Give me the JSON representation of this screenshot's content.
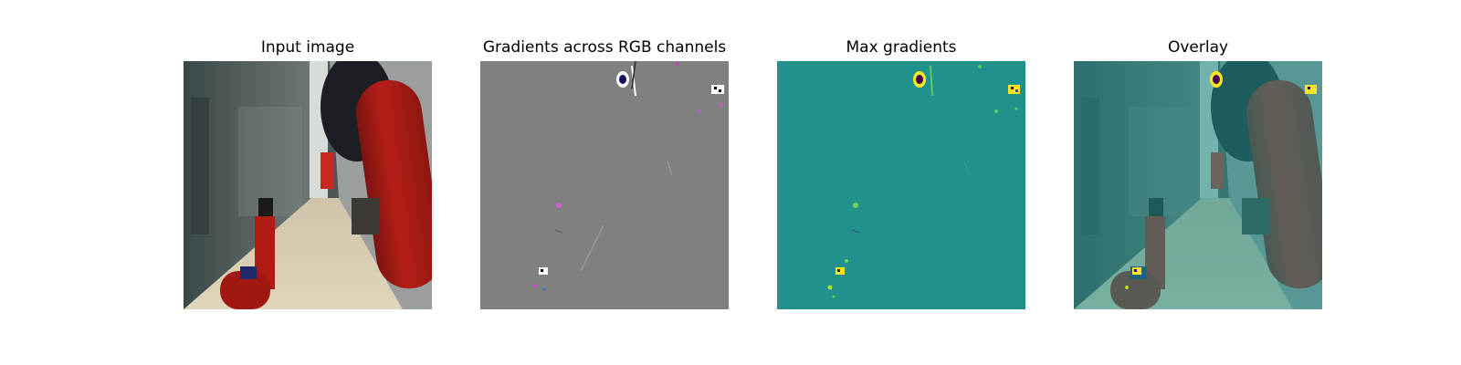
{
  "panels": [
    {
      "title": "Input image"
    },
    {
      "title": "Gradients across RGB channels"
    },
    {
      "title": "Max gradients"
    },
    {
      "title": "Overlay"
    }
  ]
}
